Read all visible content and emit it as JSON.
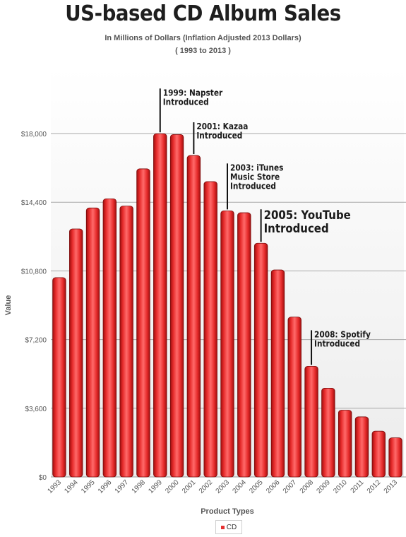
{
  "chart_data": {
    "type": "bar",
    "title": "US-based CD Album Sales",
    "subtitle_lines": [
      "In Millions of Dollars (Inflation Adjusted 2013 Dollars)",
      "( 1993 to 2013 )"
    ],
    "xlabel": "Product Types",
    "ylabel": "Value",
    "ylim": [
      0,
      18000
    ],
    "yticks": [
      0,
      3600,
      7200,
      10800,
      14400,
      18000
    ],
    "ytick_labels": [
      "$0",
      "$3,600",
      "$7,200",
      "$10,800",
      "$14,400",
      "$18,000"
    ],
    "grid": true,
    "legend_position": "bottom-center",
    "bar_color": "#e02828",
    "categories": [
      "1993",
      "1994",
      "1995",
      "1996",
      "1997",
      "1998",
      "1999",
      "2000",
      "2001",
      "2002",
      "2003",
      "2004",
      "2005",
      "2006",
      "2007",
      "2008",
      "2009",
      "2010",
      "2011",
      "2012",
      "2013"
    ],
    "series": [
      {
        "name": "CD",
        "values": [
          10450,
          13000,
          14100,
          14580,
          14200,
          16150,
          17990,
          17950,
          16850,
          15480,
          13950,
          13850,
          12250,
          10850,
          8380,
          5800,
          4650,
          3500,
          3150,
          2400,
          2050
        ]
      }
    ],
    "annotations": [
      {
        "category": "1999",
        "value": 17990,
        "lines": [
          "1999: Napster",
          "Introduced"
        ],
        "size": "small"
      },
      {
        "category": "2001",
        "value": 16850,
        "lines": [
          "2001: Kazaa",
          "Introduced"
        ],
        "size": "small"
      },
      {
        "category": "2003",
        "value": 13950,
        "lines": [
          "2003: iTunes",
          "Music Store",
          "Introduced"
        ],
        "size": "small"
      },
      {
        "category": "2005",
        "value": 12250,
        "lines": [
          "2005: YouTube",
          "Introduced"
        ],
        "size": "large"
      },
      {
        "category": "2008",
        "value": 5800,
        "lines": [
          "2008: Spotify",
          "Introduced"
        ],
        "size": "small"
      }
    ]
  }
}
